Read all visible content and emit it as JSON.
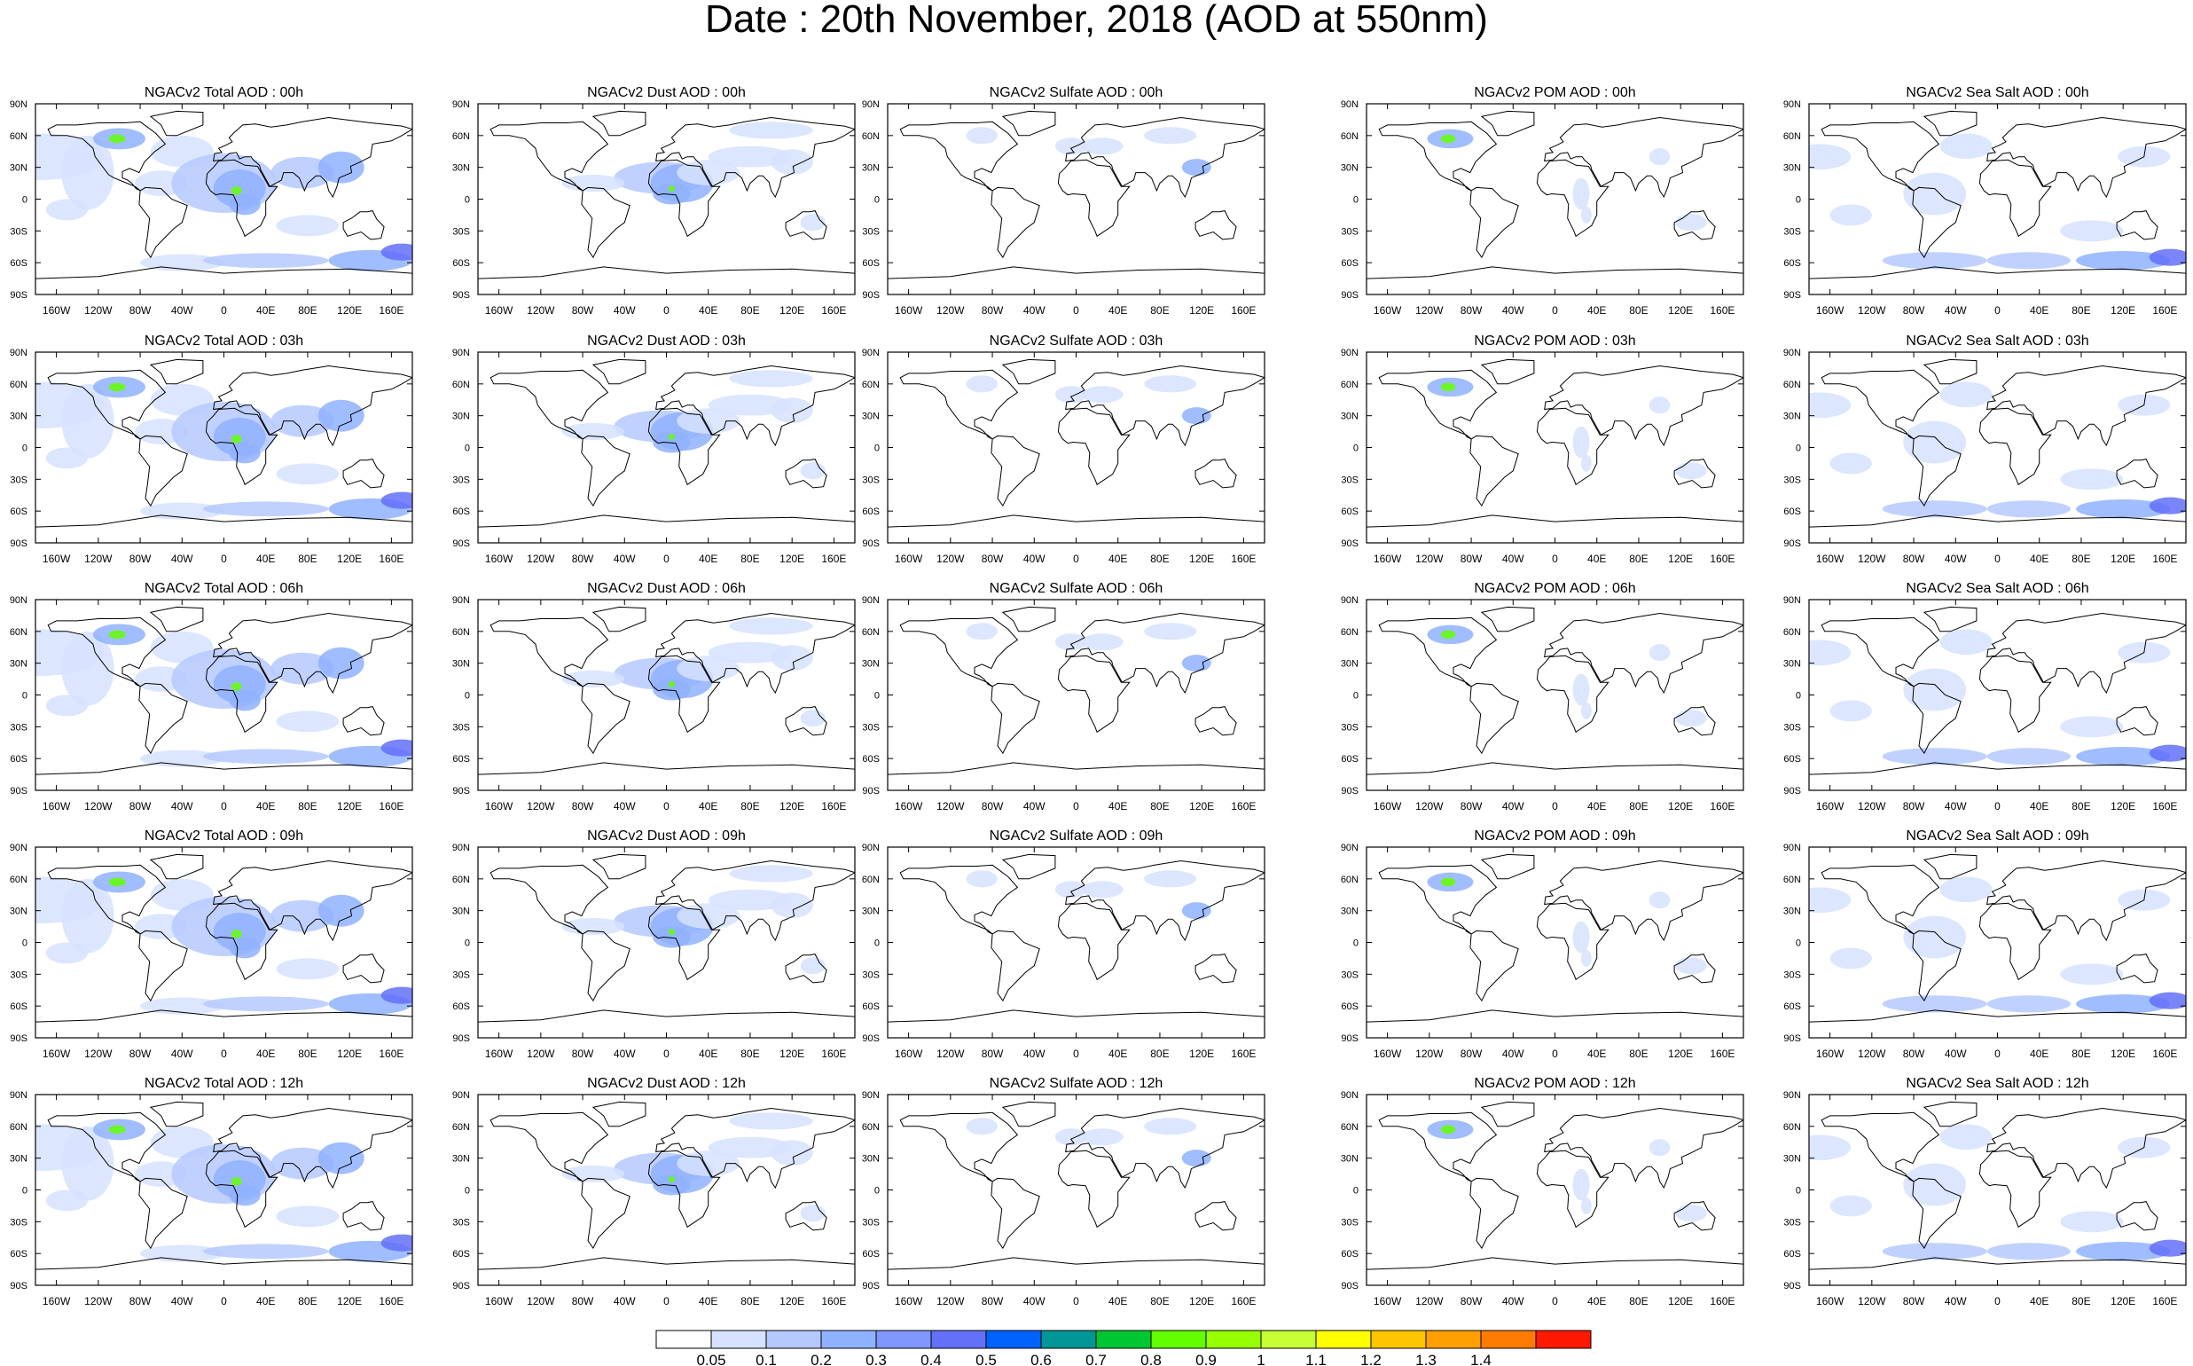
{
  "title": "Date : 20th November, 2018 (AOD at 550nm)",
  "lat_labels": [
    "90N",
    "60N",
    "30N",
    "0",
    "30S",
    "60S",
    "90S"
  ],
  "lon_labels": [
    "160W",
    "120W",
    "80W",
    "40W",
    "0",
    "40E",
    "80E",
    "120E",
    "160E"
  ],
  "rows": [
    {
      "titles": [
        "NGACv2 Total AOD : 00h",
        "NGACv2 Dust AOD : 00h",
        "NGACv2 Sulfate AOD : 00h",
        "NGACv2 POM AOD : 00h",
        "NGACv2 Sea Salt AOD : 00h"
      ]
    },
    {
      "titles": [
        "NGACv2 Total AOD : 03h",
        "NGACv2 Dust AOD : 03h",
        "NGACv2 Sulfate AOD : 03h",
        "NGACv2 POM AOD : 03h",
        "NGACv2 Sea Salt AOD : 03h"
      ]
    },
    {
      "titles": [
        "NGACv2 Total AOD : 06h",
        "NGACv2 Dust AOD : 06h",
        "NGACv2 Sulfate AOD : 06h",
        "NGACv2 POM AOD : 06h",
        "NGACv2 Sea Salt AOD : 06h"
      ]
    },
    {
      "titles": [
        "NGACv2 Total AOD : 09h",
        "NGACv2 Dust AOD : 09h",
        "NGACv2 Sulfate AOD : 09h",
        "NGACv2 POM AOD : 09h",
        "NGACv2 Sea Salt  AOD : 09h"
      ]
    },
    {
      "titles": [
        "NGACv2 Total AOD :  12h",
        "NGACv2 Dust AOD : 12h",
        "NGACv2 Sulfate AOD : 12h",
        "NGACv2 POM  AOD : 12h",
        "NGACv2 Sea Salt  AOD : 12h"
      ]
    }
  ],
  "colorbar": {
    "labels": [
      "0.05",
      "0.1",
      "0.2",
      "0.3",
      "0.4",
      "0.5",
      "0.6",
      "0.7",
      "0.8",
      "0.9",
      "1",
      "1.1",
      "1.2",
      "1.3",
      "1.4"
    ],
    "colors": [
      "#ffffff",
      "#d6e2ff",
      "#b5c9ff",
      "#8fb2ff",
      "#7f96ff",
      "#6370f8",
      "#0063ff",
      "#009696",
      "#00c633",
      "#63ff00",
      "#96ff00",
      "#c6ff33",
      "#ffff00",
      "#ffc600",
      "#ffa000",
      "#ff7c00",
      "#ff1900"
    ]
  },
  "colors": {
    "land_outline": "#000000",
    "aod_light": "#d6e2ff",
    "aod_mid": "#b5c9ff",
    "aod_high": "#8fb2ff",
    "aod_strong": "#6370f8",
    "aod_peak_green": "#63ff00"
  }
}
